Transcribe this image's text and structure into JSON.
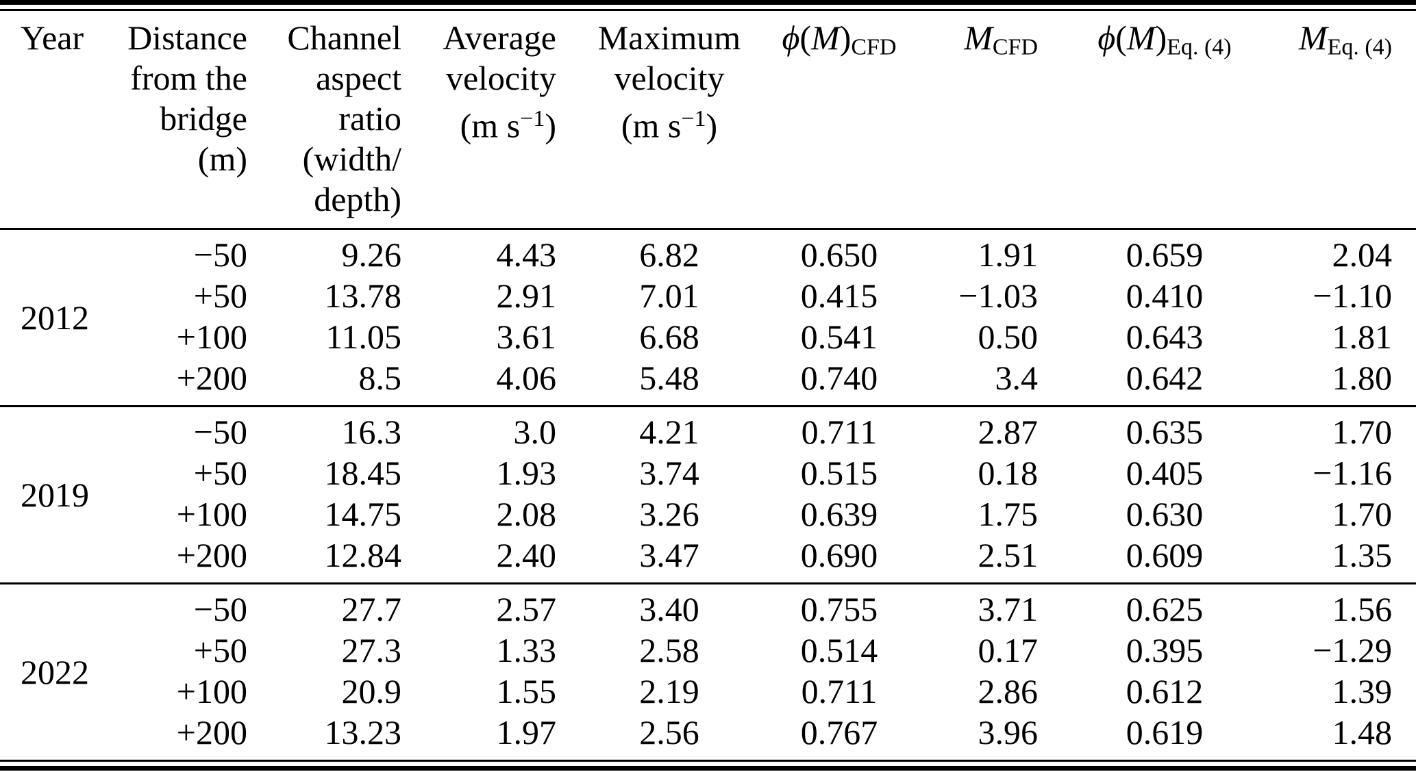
{
  "table": {
    "columns": [
      {
        "id": "year",
        "align": "left",
        "lines": [
          [
            {
              "v": "Year"
            }
          ]
        ]
      },
      {
        "id": "distance-from-bridge",
        "align": "right",
        "lines": [
          [
            {
              "v": "Distance"
            }
          ],
          [
            {
              "v": "from the"
            }
          ],
          [
            {
              "v": "bridge"
            }
          ],
          [
            {
              "v": "(m)"
            }
          ]
        ]
      },
      {
        "id": "channel-aspect-ratio",
        "align": "right",
        "lines": [
          [
            {
              "v": "Channel"
            }
          ],
          [
            {
              "v": "aspect"
            }
          ],
          [
            {
              "v": "ratio"
            }
          ],
          [
            {
              "v": "(width/"
            }
          ],
          [
            {
              "v": "depth)"
            }
          ]
        ]
      },
      {
        "id": "average-velocity",
        "align": "right",
        "lines": [
          [
            {
              "v": "Average"
            }
          ],
          [
            {
              "v": "velocity"
            }
          ],
          [
            {
              "v": "(m s"
            },
            {
              "v": "−1",
              "sup": true
            },
            {
              "v": ")"
            }
          ]
        ]
      },
      {
        "id": "maximum-velocity",
        "align": "center",
        "lines": [
          [
            {
              "v": "Maximum"
            }
          ],
          [
            {
              "v": "velocity"
            }
          ],
          [
            {
              "v": "(m s"
            },
            {
              "v": "−1",
              "sup": true
            },
            {
              "v": ")"
            }
          ]
        ]
      },
      {
        "id": "phi-m-cfd",
        "align": "center",
        "lines": [
          [
            {
              "v": "ϕ",
              "i": true
            },
            {
              "v": "("
            },
            {
              "v": "M",
              "i": true
            },
            {
              "v": ")"
            },
            {
              "v": "CFD",
              "sub": true
            }
          ]
        ]
      },
      {
        "id": "m-cfd",
        "align": "right",
        "lines": [
          [
            {
              "v": "M",
              "i": true
            },
            {
              "v": "CFD",
              "sub": true
            }
          ]
        ]
      },
      {
        "id": "phi-m-eq4",
        "align": "center",
        "lines": [
          [
            {
              "v": "ϕ",
              "i": true
            },
            {
              "v": "("
            },
            {
              "v": "M",
              "i": true
            },
            {
              "v": ")"
            },
            {
              "v": "Eq. (4)",
              "sub": true
            }
          ]
        ]
      },
      {
        "id": "m-eq4",
        "align": "right",
        "lines": [
          [
            {
              "v": "M",
              "i": true
            },
            {
              "v": "Eq. (4)",
              "sub": true
            }
          ]
        ]
      }
    ],
    "groups": [
      {
        "year": "2012",
        "rows": [
          [
            "−50",
            "9.26",
            "4.43",
            "6.82",
            "0.650",
            "1.91",
            "0.659",
            "2.04"
          ],
          [
            "+50",
            "13.78",
            "2.91",
            "7.01",
            "0.415",
            "−1.03",
            "0.410",
            "−1.10"
          ],
          [
            "+100",
            "11.05",
            "3.61",
            "6.68",
            "0.541",
            "0.50",
            "0.643",
            "1.81"
          ],
          [
            "+200",
            "8.5",
            "4.06",
            "5.48",
            "0.740",
            "3.4",
            "0.642",
            "1.80"
          ]
        ]
      },
      {
        "year": "2019",
        "rows": [
          [
            "−50",
            "16.3",
            "3.0",
            "4.21",
            "0.711",
            "2.87",
            "0.635",
            "1.70"
          ],
          [
            "+50",
            "18.45",
            "1.93",
            "3.74",
            "0.515",
            "0.18",
            "0.405",
            "−1.16"
          ],
          [
            "+100",
            "14.75",
            "2.08",
            "3.26",
            "0.639",
            "1.75",
            "0.630",
            "1.70"
          ],
          [
            "+200",
            "12.84",
            "2.40",
            "3.47",
            "0.690",
            "2.51",
            "0.609",
            "1.35"
          ]
        ]
      },
      {
        "year": "2022",
        "rows": [
          [
            "−50",
            "27.7",
            "2.57",
            "3.40",
            "0.755",
            "3.71",
            "0.625",
            "1.56"
          ],
          [
            "+50",
            "27.3",
            "1.33",
            "2.58",
            "0.514",
            "0.17",
            "0.395",
            "−1.29"
          ],
          [
            "+100",
            "20.9",
            "1.55",
            "2.19",
            "0.711",
            "2.86",
            "0.612",
            "1.39"
          ],
          [
            "+200",
            "13.23",
            "1.97",
            "2.56",
            "0.767",
            "3.96",
            "0.619",
            "1.48"
          ]
        ]
      }
    ],
    "rules_color": "#000000",
    "text_color": "#000000",
    "background_color": "#ffffff"
  }
}
